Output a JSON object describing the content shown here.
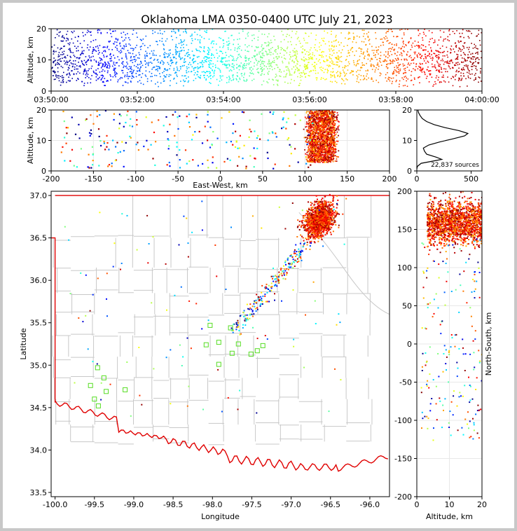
{
  "title": "Oklahoma LMA 0350-0400 UTC July 21, 2023",
  "chart_data": [
    {
      "panel": "altitude-time",
      "type": "scatter",
      "ylabel": "Altitude, km",
      "xlabel": "",
      "xticks": [
        "03:50:00",
        "03:52:00",
        "03:54:00",
        "03:56:00",
        "03:58:00",
        "04:00:00"
      ],
      "xlim_minutes": [
        0,
        10
      ],
      "ylim": [
        0,
        20
      ],
      "yticks": [
        0,
        10,
        20
      ],
      "colormap": "jet (time)",
      "notes": "dense band of sources 3-20 km throughout, colored by time from blue (03:50) to dark red (04:00)"
    },
    {
      "panel": "east-west-altitude",
      "type": "scatter",
      "xlabel": "East-West, km",
      "ylabel": "Altitude, km",
      "xlim": [
        -200,
        200
      ],
      "ylim": [
        0,
        20
      ],
      "xticks": [
        -200,
        -150,
        -100,
        -50,
        0,
        50,
        100,
        150,
        200
      ],
      "yticks": [
        0,
        10,
        20
      ],
      "notes": "main cluster at East-West 95 to 140 km, 3-20 km altitude; scattered sources from -190 to 160 km"
    },
    {
      "panel": "altitude-histogram",
      "type": "line",
      "ylim": [
        0,
        20
      ],
      "xlim": [
        0,
        600
      ],
      "xticks": [
        0,
        500
      ],
      "yticks": [
        0,
        10,
        20
      ],
      "annotation": "22,837 sources",
      "profile": [
        [
          0,
          0.6
        ],
        [
          5,
          1.5
        ],
        [
          40,
          2.5
        ],
        [
          160,
          3.3
        ],
        [
          230,
          3.8
        ],
        [
          180,
          4.5
        ],
        [
          90,
          5.5
        ],
        [
          70,
          6.5
        ],
        [
          60,
          7.5
        ],
        [
          110,
          8.5
        ],
        [
          210,
          9.5
        ],
        [
          330,
          10.5
        ],
        [
          440,
          11.5
        ],
        [
          470,
          12.3
        ],
        [
          390,
          13.2
        ],
        [
          260,
          14.2
        ],
        [
          160,
          15.2
        ],
        [
          90,
          16.2
        ],
        [
          50,
          17.2
        ],
        [
          30,
          18.2
        ],
        [
          15,
          19.2
        ],
        [
          10,
          20
        ]
      ]
    },
    {
      "panel": "plan-view",
      "type": "scatter",
      "xlabel": "Longitude",
      "ylabel": "Latitude",
      "xlim": [
        -100.05,
        -95.75
      ],
      "ylim": [
        33.45,
        37.05
      ],
      "xticks": [
        "-100.0",
        "-99.5",
        "-99.0",
        "-98.5",
        "-98.0",
        "-97.5",
        "-97.0",
        "-96.5",
        "-96.0"
      ],
      "yticks": [
        "33.5",
        "34.0",
        "34.5",
        "35.0",
        "35.5",
        "36.0",
        "36.5",
        "37.0"
      ],
      "stations": [
        [
          -98.03,
          35.47
        ],
        [
          -97.77,
          35.44
        ],
        [
          -98.08,
          35.24
        ],
        [
          -97.92,
          35.27
        ],
        [
          -97.67,
          35.25
        ],
        [
          -97.36,
          35.23
        ],
        [
          -97.43,
          35.17
        ],
        [
          -97.51,
          35.13
        ],
        [
          -97.75,
          35.14
        ],
        [
          -97.92,
          35.01
        ],
        [
          -99.46,
          34.97
        ],
        [
          -99.38,
          34.85
        ],
        [
          -99.55,
          34.76
        ],
        [
          -99.35,
          34.69
        ],
        [
          -99.11,
          34.71
        ],
        [
          -99.5,
          34.6
        ],
        [
          -99.45,
          34.52
        ]
      ],
      "notes": "dense storm cluster near -96.9 to -96.3 lon, 36.4 to 37.0 lat; line of sources extending SW toward -97.6, 35.4"
    },
    {
      "panel": "north-south-altitude",
      "type": "scatter",
      "xlabel": "Altitude, km",
      "ylabel": "North-South, km",
      "xlim": [
        0,
        20
      ],
      "ylim": [
        -200,
        200
      ],
      "xticks": [
        0,
        10,
        20
      ],
      "yticks": [
        -200,
        -150,
        -100,
        -50,
        0,
        50,
        100,
        150,
        200
      ],
      "notes": "main cluster at North-South 130 to 200 km"
    }
  ]
}
